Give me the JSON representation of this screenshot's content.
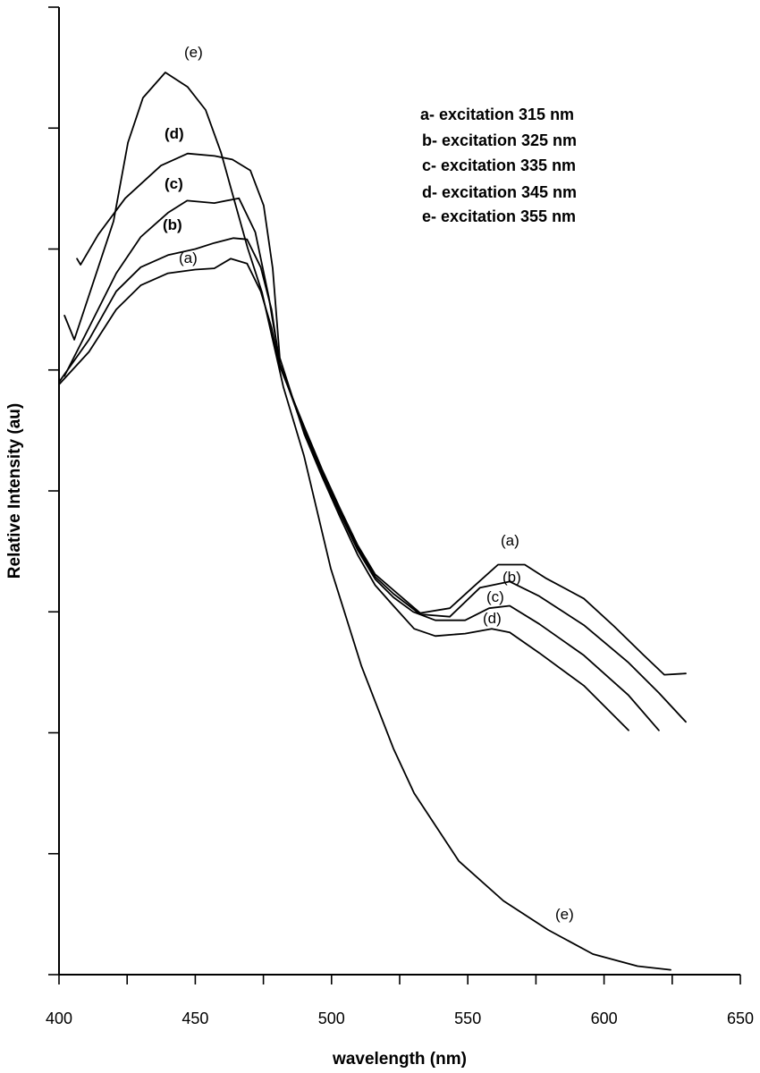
{
  "chart_data": {
    "type": "line",
    "title": "",
    "xlabel": "wavelength (nm)",
    "ylabel": "Relative Intensity  (au)",
    "xlim": [
      400,
      650
    ],
    "ylim": [
      0,
      8
    ],
    "x_ticks": [
      "400",
      "450",
      "500",
      "550",
      "600",
      "650"
    ],
    "y_ticks_count": 8,
    "y_tick_labels_shown": false,
    "grid": false,
    "legend_placement": "top-right",
    "legend": [
      "a- excitation 315 nm",
      "b- excitation 325 nm",
      "c- excitation 335 nm",
      "d- excitation 345 nm",
      "e- excitation 355 nm"
    ],
    "curve_labels": {
      "a": "(a)",
      "b": "(b)",
      "c": "(c)",
      "d": "(d)",
      "e": "(e)"
    },
    "line_color": "#000000",
    "series": [
      {
        "name": "a",
        "x": [
          400,
          411,
          421,
          430,
          440,
          450,
          457,
          463,
          469,
          474,
          478,
          481,
          490,
          496.5,
          503,
          509.6,
          516,
          522.7,
          532.5,
          543.4,
          552.2,
          561.1,
          570.9,
          578.5,
          592.6,
          603.7,
          614.6,
          622.1,
          630
        ],
        "y": [
          4.88,
          5.15,
          5.5,
          5.7,
          5.8,
          5.83,
          5.84,
          5.92,
          5.88,
          5.65,
          5.35,
          5.03,
          4.53,
          4.18,
          3.86,
          3.55,
          3.31,
          3.18,
          2.99,
          3.03,
          3.21,
          3.39,
          3.39,
          3.28,
          3.11,
          2.88,
          2.64,
          2.48,
          2.49
        ]
      },
      {
        "name": "b",
        "x": [
          400,
          411,
          421,
          430,
          440,
          450,
          457,
          464,
          469,
          474,
          478,
          481,
          490,
          496.5,
          503,
          509.6,
          516,
          522.7,
          532.5,
          543.4,
          554.5,
          565.4,
          576.2,
          592.6,
          609,
          620.1,
          630
        ],
        "y": [
          4.9,
          5.25,
          5.65,
          5.85,
          5.95,
          6.0,
          6.05,
          6.09,
          6.08,
          5.85,
          5.5,
          5.05,
          4.51,
          4.16,
          3.84,
          3.53,
          3.29,
          3.15,
          2.98,
          2.96,
          3.2,
          3.25,
          3.13,
          2.89,
          2.58,
          2.33,
          2.09
        ]
      },
      {
        "name": "c",
        "x": [
          402,
          411,
          421,
          430,
          440,
          447,
          457,
          466,
          472,
          477,
          481,
          490,
          496.5,
          503,
          509.6,
          516,
          522.7,
          530,
          538.1,
          549,
          557.8,
          565.4,
          576.2,
          592.6,
          609,
          620.1
        ],
        "y": [
          4.95,
          5.35,
          5.8,
          6.1,
          6.3,
          6.4,
          6.38,
          6.42,
          6.14,
          5.6,
          5.05,
          4.49,
          4.14,
          3.82,
          3.51,
          3.27,
          3.12,
          3.0,
          2.93,
          2.93,
          3.03,
          3.05,
          2.9,
          2.64,
          2.31,
          2.02
        ]
      },
      {
        "name": "d",
        "x": [
          406.6,
          407.9,
          414.4,
          424.3,
          437.4,
          447.2,
          457.1,
          463.6,
          470.2,
          475.1,
          478.4,
          481,
          490,
          496.5,
          503,
          509.6,
          516,
          522.7,
          530.3,
          538.1,
          549,
          558.8,
          565.4,
          576.2,
          592.6,
          609
        ],
        "y": [
          5.92,
          5.87,
          6.12,
          6.42,
          6.69,
          6.79,
          6.77,
          6.74,
          6.65,
          6.36,
          5.84,
          5.1,
          4.47,
          4.12,
          3.79,
          3.47,
          3.22,
          3.05,
          2.86,
          2.8,
          2.82,
          2.86,
          2.83,
          2.66,
          2.39,
          2.02
        ]
      },
      {
        "name": "e",
        "x": [
          402,
          405.6,
          420,
          425.3,
          430.8,
          439,
          447.2,
          453.8,
          459.4,
          464.6,
          469.2,
          474.5,
          482.3,
          489.9,
          499.7,
          511,
          522.7,
          530.3,
          546.7,
          563.1,
          579.5,
          595.9,
          612.3,
          624.4
        ],
        "y": [
          5.45,
          5.25,
          6.23,
          6.88,
          7.25,
          7.46,
          7.34,
          7.15,
          6.8,
          6.38,
          6.01,
          5.64,
          4.86,
          4.29,
          3.36,
          2.55,
          1.87,
          1.5,
          0.94,
          0.61,
          0.37,
          0.17,
          0.07,
          0.04
        ]
      }
    ]
  }
}
